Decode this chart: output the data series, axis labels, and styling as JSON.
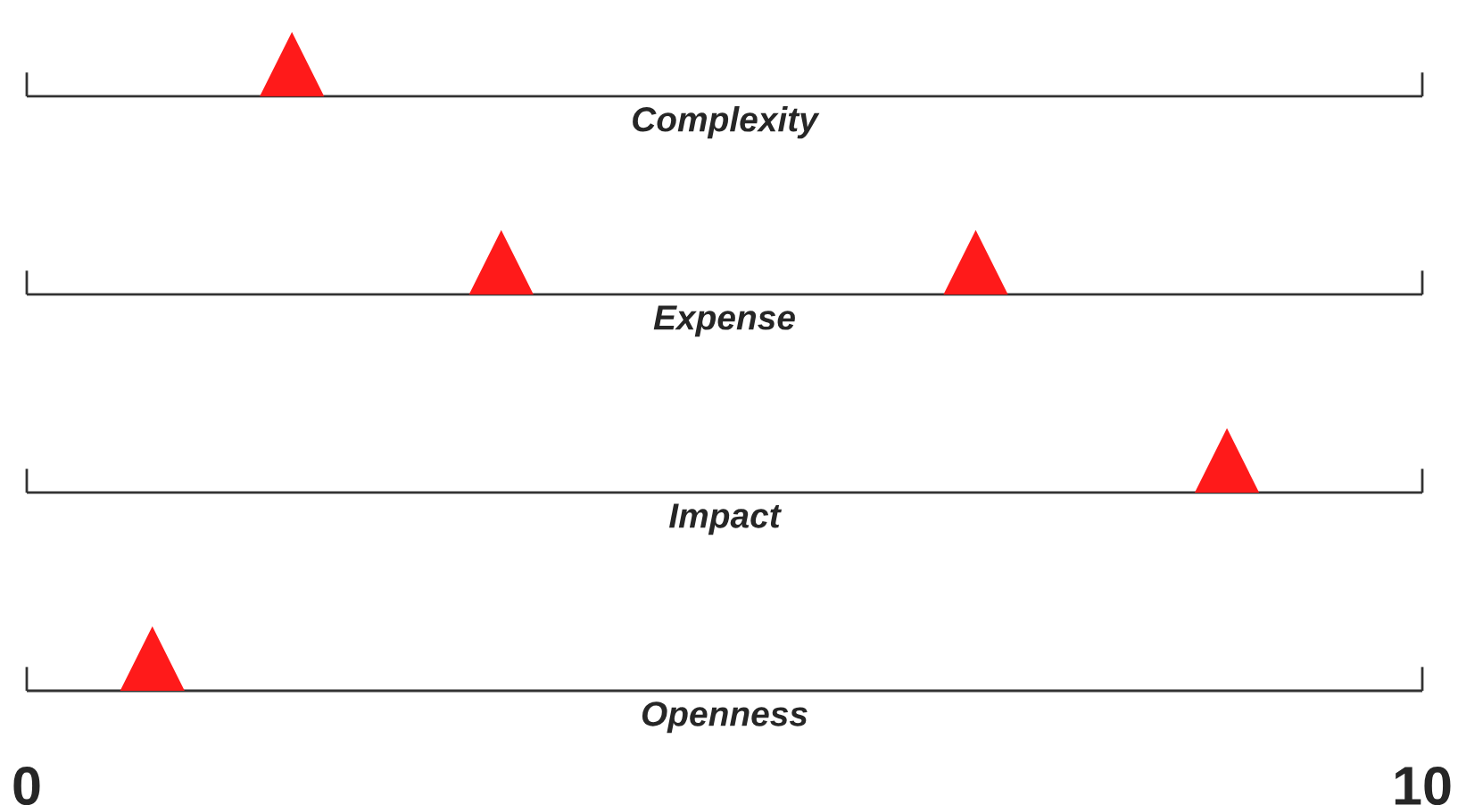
{
  "chart_data": {
    "type": "scatter",
    "orientation": "horizontal",
    "categories": [
      "Complexity",
      "Expense",
      "Impact",
      "Openness"
    ],
    "marker": "triangle",
    "xlim": [
      0,
      10
    ],
    "xticks": [
      0,
      10
    ],
    "series": [
      {
        "color": "#ff1a1a",
        "values": [
          1.9,
          3.4,
          8.6,
          0.9
        ]
      },
      {
        "color": "#ff1a1a",
        "values": [
          null,
          6.8,
          null,
          null
        ]
      }
    ]
  }
}
